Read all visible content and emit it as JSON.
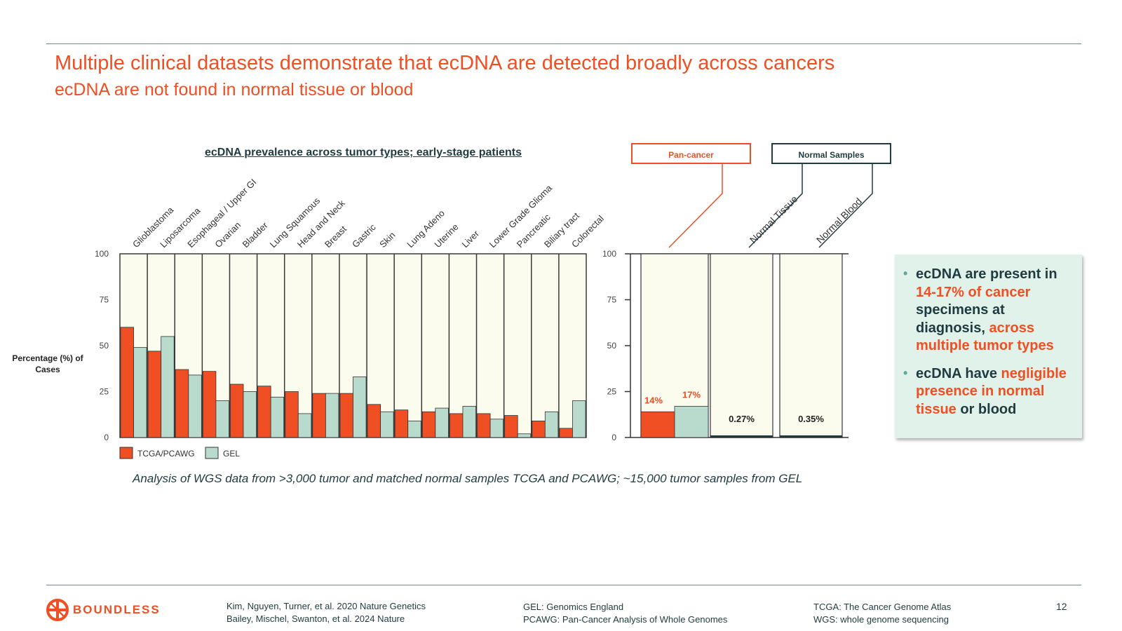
{
  "header": {
    "title": "Multiple clinical datasets demonstrate that ecDNA are detected broadly across cancers",
    "subtitle": "ecDNA are not found in normal tissue or blood"
  },
  "colors": {
    "accent": "#f04e23",
    "tcga": "#f04e23",
    "gel": "#b9dbcd",
    "dark": "#1f3b3f",
    "panel_bg": "#fbfbee"
  },
  "chart_data": [
    {
      "type": "bar",
      "title": "ecDNA prevalence across tumor types; early-stage patients",
      "ylabel": "Percentage (%) of Cases",
      "ylim": [
        0,
        100
      ],
      "yticks": [
        0,
        25,
        50,
        75,
        100
      ],
      "categories": [
        "Glioblastoma",
        "Liposarcoma",
        "Esophageal / Upper GI",
        "Ovarian",
        "Bladder",
        "Lung Squamous",
        "Head and Neck",
        "Breast",
        "Gastric",
        "Skin",
        "Lung Adeno",
        "Uterine",
        "Liver",
        "Lower Grade Glioma",
        "Pancreatic",
        "Biliary tract",
        "Colorectal"
      ],
      "series": [
        {
          "name": "TCGA/PCAWG",
          "values": [
            60,
            47,
            37,
            36,
            29,
            28,
            25,
            24,
            24,
            18,
            15,
            14,
            13,
            13,
            12,
            9,
            5
          ]
        },
        {
          "name": "GEL",
          "values": [
            49,
            55,
            34,
            20,
            25,
            22,
            13,
            24,
            33,
            14,
            9,
            16,
            17,
            10,
            2,
            14,
            20
          ]
        }
      ],
      "legend": "bottom-left"
    },
    {
      "type": "bar",
      "ylim": [
        0,
        100
      ],
      "yticks": [
        0,
        25,
        50,
        75,
        100
      ],
      "groups": [
        {
          "label": "Pan-cancer",
          "bars": [
            {
              "value": 14,
              "label": "14%",
              "series": "TCGA/PCAWG"
            },
            {
              "value": 17,
              "label": "17%",
              "series": "GEL"
            }
          ]
        },
        {
          "label": "Normal Tissue",
          "bars": [
            {
              "value": 0.27,
              "label": "0.27%"
            }
          ]
        },
        {
          "label": "Normal Blood",
          "bars": [
            {
              "value": 0.35,
              "label": "0.35%"
            }
          ]
        }
      ],
      "group_headers": [
        "Pan-cancer",
        "Normal Samples"
      ]
    }
  ],
  "callout": {
    "bullet1": {
      "a": "ecDNA are present in ",
      "b": "14-17% of cancer",
      "c": " specimens at diagnosis, ",
      "d": "across multiple tumor types"
    },
    "bullet2": {
      "a": "ecDNA have ",
      "b": "negligible presence in normal tissue",
      "c": " or blood"
    }
  },
  "caption": "Analysis of WGS data from >3,000 tumor and matched normal samples TCGA and PCAWG; ~15,000 tumor samples from GEL",
  "footer": {
    "logo": "BOUNDLESS",
    "ref1": "Kim, Nguyen, Turner, et al. 2020 Nature Genetics",
    "ref2": "Bailey, Mischel, Swanton, et al. 2024 Nature",
    "abbr1": "GEL: Genomics England",
    "abbr2": "PCAWG: Pan-Cancer Analysis of Whole Genomes",
    "abbr3": "TCGA: The Cancer Genome Atlas",
    "abbr4": "WGS: whole genome sequencing",
    "page": "12"
  }
}
